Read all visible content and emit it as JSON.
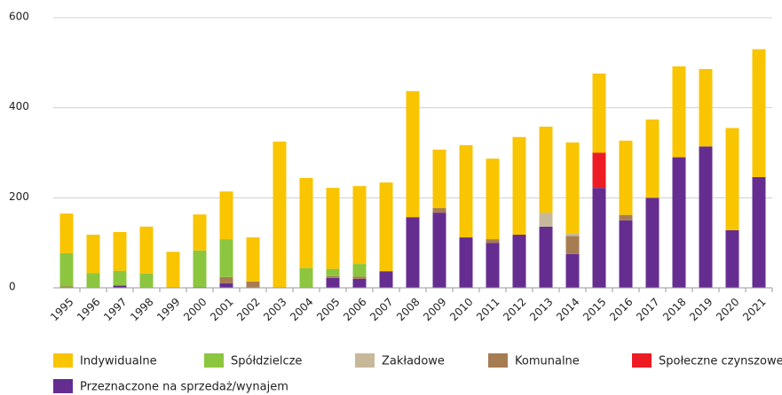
{
  "chart_data": {
    "type": "bar",
    "stacked": true,
    "categories": [
      "1995",
      "1996",
      "1997",
      "1998",
      "1999",
      "2000",
      "2001",
      "2002",
      "2003",
      "2004",
      "2005",
      "2006",
      "2007",
      "2008",
      "2009",
      "2010",
      "2011",
      "2012",
      "2013",
      "2014",
      "2015",
      "2016",
      "2017",
      "2018",
      "2019",
      "2020",
      "2021"
    ],
    "series": [
      {
        "name": "Indywidualne",
        "color": "#f9c400",
        "values": [
          88,
          85,
          86,
          104,
          80,
          80,
          106,
          98,
          325,
          200,
          180,
          173,
          197,
          280,
          130,
          205,
          179,
          217,
          191,
          203,
          176,
          165,
          174,
          202,
          172,
          227,
          284
        ]
      },
      {
        "name": "Spółdzielcze",
        "color": "#8cc63f",
        "values": [
          74,
          33,
          33,
          32,
          0,
          81,
          84,
          0,
          0,
          44,
          16,
          28,
          0,
          0,
          0,
          0,
          0,
          0,
          0,
          0,
          0,
          0,
          0,
          0,
          0,
          0,
          0
        ]
      },
      {
        "name": "Zakładowe",
        "color": "#c8b89a",
        "values": [
          0,
          0,
          0,
          0,
          0,
          0,
          0,
          0,
          0,
          0,
          0,
          0,
          0,
          0,
          0,
          0,
          0,
          0,
          31,
          5,
          0,
          0,
          0,
          0,
          0,
          0,
          0
        ]
      },
      {
        "name": "Komunalne",
        "color": "#a67c52",
        "values": [
          3,
          0,
          0,
          0,
          0,
          2,
          14,
          14,
          0,
          0,
          4,
          5,
          0,
          0,
          10,
          0,
          8,
          0,
          0,
          40,
          0,
          12,
          0,
          0,
          0,
          0,
          0
        ]
      },
      {
        "name": "Społeczne czynszowe",
        "color": "#ed1c24",
        "values": [
          0,
          0,
          0,
          0,
          0,
          0,
          0,
          0,
          0,
          0,
          0,
          0,
          0,
          0,
          0,
          0,
          0,
          0,
          0,
          0,
          78,
          0,
          0,
          0,
          0,
          0,
          0
        ]
      },
      {
        "name": "Przeznaczone na sprzedaż/wynajem",
        "color": "#662d91",
        "values": [
          0,
          0,
          5,
          0,
          0,
          0,
          10,
          0,
          0,
          0,
          22,
          20,
          37,
          157,
          167,
          112,
          100,
          118,
          136,
          75,
          222,
          150,
          200,
          290,
          314,
          128,
          246
        ]
      }
    ],
    "ylim": [
      0,
      600
    ],
    "yticks": [
      0,
      200,
      400,
      600
    ],
    "grid": true
  }
}
